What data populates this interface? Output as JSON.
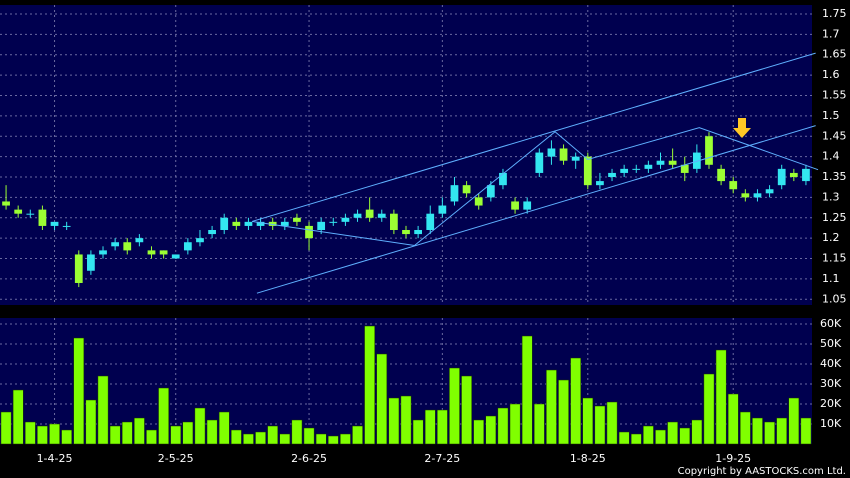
{
  "chart_data": {
    "type": "candlestick",
    "categories": [
      null,
      null,
      null,
      null,
      "1-4-25",
      null,
      null,
      null,
      null,
      null,
      null,
      null,
      null,
      null,
      "2-5-25",
      null,
      null,
      null,
      null,
      null,
      null,
      null,
      null,
      null,
      null,
      "2-6-25",
      null,
      null,
      null,
      null,
      null,
      null,
      null,
      null,
      null,
      null,
      "2-7-25",
      null,
      null,
      null,
      null,
      null,
      null,
      null,
      null,
      null,
      null,
      null,
      "1-8-25",
      null,
      null,
      null,
      null,
      null,
      null,
      null,
      null,
      null,
      null,
      null,
      "1-9-25",
      null,
      null,
      null,
      null,
      null,
      null
    ],
    "xlim": [
      -0.5,
      66.5
    ],
    "open": [
      1.29,
      1.27,
      1.26,
      1.27,
      1.23,
      1.23,
      1.16,
      1.12,
      1.16,
      1.18,
      1.19,
      1.19,
      1.17,
      1.17,
      1.15,
      1.17,
      1.19,
      1.21,
      1.22,
      1.24,
      1.23,
      1.23,
      1.24,
      1.23,
      1.25,
      1.23,
      1.22,
      1.24,
      1.24,
      1.25,
      1.27,
      1.25,
      1.26,
      1.22,
      1.21,
      1.22,
      1.26,
      1.29,
      1.33,
      1.3,
      1.3,
      1.33,
      1.29,
      1.27,
      1.36,
      1.4,
      1.42,
      1.39,
      1.4,
      1.33,
      1.35,
      1.36,
      1.37,
      1.37,
      1.38,
      1.39,
      1.38,
      1.37,
      1.45,
      1.37,
      1.34,
      1.31,
      1.3,
      1.31,
      1.33,
      1.36,
      1.34
    ],
    "high": [
      1.33,
      1.28,
      1.27,
      1.28,
      1.24,
      1.24,
      1.17,
      1.17,
      1.18,
      1.2,
      1.2,
      1.21,
      1.18,
      1.17,
      1.16,
      1.2,
      1.22,
      1.23,
      1.26,
      1.25,
      1.25,
      1.25,
      1.25,
      1.25,
      1.26,
      1.24,
      1.25,
      1.25,
      1.26,
      1.27,
      1.3,
      1.27,
      1.27,
      1.23,
      1.23,
      1.28,
      1.3,
      1.35,
      1.34,
      1.31,
      1.34,
      1.37,
      1.3,
      1.3,
      1.42,
      1.44,
      1.43,
      1.41,
      1.41,
      1.36,
      1.37,
      1.38,
      1.38,
      1.39,
      1.41,
      1.42,
      1.4,
      1.43,
      1.46,
      1.38,
      1.35,
      1.32,
      1.32,
      1.33,
      1.38,
      1.37,
      1.38
    ],
    "low": [
      1.27,
      1.25,
      1.25,
      1.22,
      1.22,
      1.22,
      1.08,
      1.11,
      1.15,
      1.17,
      1.16,
      1.18,
      1.15,
      1.15,
      1.15,
      1.16,
      1.18,
      1.2,
      1.21,
      1.22,
      1.22,
      1.22,
      1.22,
      1.22,
      1.23,
      1.17,
      1.21,
      1.23,
      1.23,
      1.24,
      1.24,
      1.24,
      1.21,
      1.2,
      1.2,
      1.21,
      1.25,
      1.28,
      1.3,
      1.27,
      1.29,
      1.32,
      1.26,
      1.26,
      1.35,
      1.38,
      1.38,
      1.37,
      1.32,
      1.32,
      1.34,
      1.35,
      1.36,
      1.36,
      1.37,
      1.37,
      1.34,
      1.36,
      1.37,
      1.33,
      1.31,
      1.29,
      1.29,
      1.3,
      1.32,
      1.34,
      1.33
    ],
    "close": [
      1.28,
      1.26,
      1.26,
      1.23,
      1.24,
      1.23,
      1.09,
      1.16,
      1.17,
      1.19,
      1.17,
      1.2,
      1.16,
      1.16,
      1.16,
      1.19,
      1.2,
      1.22,
      1.25,
      1.23,
      1.24,
      1.24,
      1.23,
      1.24,
      1.24,
      1.2,
      1.24,
      1.24,
      1.25,
      1.26,
      1.25,
      1.26,
      1.22,
      1.21,
      1.22,
      1.26,
      1.28,
      1.33,
      1.31,
      1.28,
      1.33,
      1.36,
      1.27,
      1.29,
      1.41,
      1.42,
      1.39,
      1.4,
      1.33,
      1.34,
      1.36,
      1.37,
      1.37,
      1.38,
      1.39,
      1.38,
      1.36,
      1.41,
      1.38,
      1.34,
      1.32,
      1.3,
      1.31,
      1.32,
      1.37,
      1.35,
      1.37
    ],
    "up_color": "#33e6f0",
    "down_color": "#9cff33",
    "ylim": [
      1.036,
      1.772
    ],
    "yticks": [
      1.05,
      1.1,
      1.15,
      1.2,
      1.25,
      1.3,
      1.35,
      1.4,
      1.45,
      1.5,
      1.55,
      1.6,
      1.65,
      1.7,
      1.75
    ],
    "trendlines": [
      {
        "color": "#5fb0ff",
        "x": [
          20.3,
          66.8
        ],
        "y": [
          1.241,
          1.654
        ]
      },
      {
        "color": "#5fb0ff",
        "x": [
          20.7,
          66.8
        ],
        "y": [
          1.065,
          1.476
        ]
      },
      {
        "color": "#5fb0ff",
        "x": [
          20.3,
          33.7,
          45.3,
          48,
          57.2,
          67
        ],
        "y": [
          1.241,
          1.182,
          1.461,
          1.393,
          1.471,
          1.368
        ]
      }
    ],
    "volume": {
      "color": "#80ff00",
      "values": [
        16000,
        27000,
        11000,
        9000,
        10000,
        7000,
        53000,
        22000,
        34000,
        9000,
        11000,
        13000,
        7000,
        28000,
        9000,
        11000,
        18000,
        12000,
        16000,
        7000,
        5000,
        6000,
        9000,
        5000,
        12000,
        8000,
        5000,
        4000,
        5000,
        9000,
        59000,
        45000,
        23000,
        24000,
        12000,
        17000,
        17000,
        38000,
        34000,
        12000,
        14000,
        18000,
        20000,
        54000,
        20000,
        37000,
        32000,
        43000,
        23000,
        19000,
        21000,
        6000,
        5000,
        9000,
        7000,
        11000,
        8000,
        12000,
        35000,
        47000,
        25000,
        16000,
        13000,
        11000,
        13000,
        23000,
        13000
      ],
      "ylim": [
        0,
        63000
      ],
      "yticks": [
        {
          "value": 10000,
          "label": "10K"
        },
        {
          "value": 20000,
          "label": "20K"
        },
        {
          "value": 30000,
          "label": "30K"
        },
        {
          "value": 40000,
          "label": "40K"
        },
        {
          "value": 50000,
          "label": "50K"
        },
        {
          "value": 60000,
          "label": "60K"
        }
      ]
    },
    "grid": true,
    "copyright": "Copyright by AASTOCKS.com Ltd."
  }
}
